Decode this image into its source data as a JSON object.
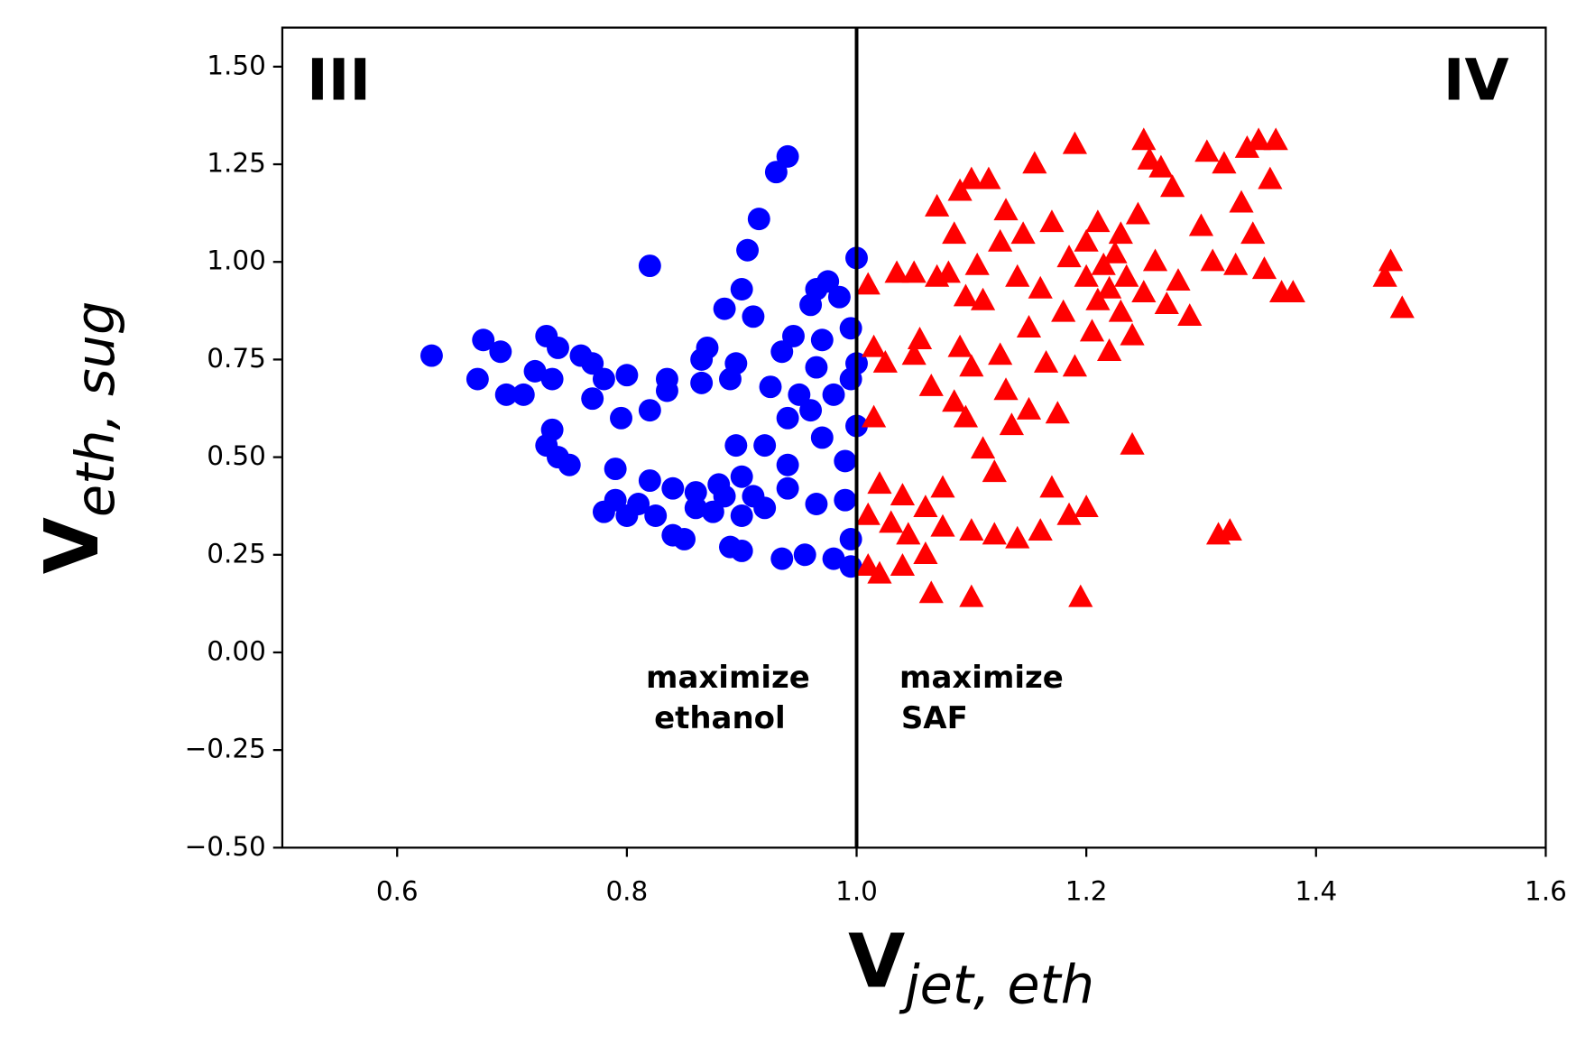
{
  "chart_data": {
    "type": "scatter",
    "xlabel": "V",
    "xlabel_sub": "jet, eth",
    "ylabel": "V",
    "ylabel_sub": "eth, sug",
    "xlim": [
      0.5,
      1.6
    ],
    "ylim": [
      -0.5,
      1.6
    ],
    "xticks": [
      0.6,
      0.8,
      {
        "value": 1,
        "label": "1.0"
      },
      1.2,
      1.4,
      1.6
    ],
    "yticks": [
      {
        "value": -0.5,
        "label": "−0.50"
      },
      {
        "value": -0.25,
        "label": "−0.25"
      },
      {
        "value": 0,
        "label": "0.00"
      },
      {
        "value": 0.25,
        "label": "0.25"
      },
      {
        "value": 0.5,
        "label": "0.50"
      },
      {
        "value": 0.75,
        "label": "0.75"
      },
      {
        "value": 1,
        "label": "1.00"
      },
      {
        "value": 1.25,
        "label": "1.25"
      },
      {
        "value": 1.5,
        "label": "1.50"
      }
    ],
    "grid": false,
    "vline": 1.0,
    "quadrant_left": "III",
    "quadrant_right": "IV",
    "annotation_left": [
      "maximize",
      "ethanol"
    ],
    "annotation_right": [
      "maximize",
      "SAF"
    ],
    "series": [
      {
        "color": "#0000ff",
        "marker": "circle",
        "x": [
          0.63,
          0.67,
          0.675,
          0.69,
          0.695,
          0.71,
          0.72,
          0.73,
          0.735,
          0.74,
          0.73,
          0.735,
          0.74,
          0.75,
          0.76,
          0.77,
          0.77,
          0.78,
          0.78,
          0.79,
          0.79,
          0.795,
          0.8,
          0.8,
          0.81,
          0.82,
          0.82,
          0.82,
          0.825,
          0.835,
          0.835,
          0.84,
          0.84,
          0.85,
          0.86,
          0.86,
          0.865,
          0.865,
          0.87,
          0.875,
          0.88,
          0.885,
          0.885,
          0.89,
          0.89,
          0.895,
          0.895,
          0.9,
          0.9,
          0.9,
          0.9,
          0.905,
          0.91,
          0.91,
          0.915,
          0.92,
          0.92,
          0.925,
          0.93,
          0.935,
          0.935,
          0.94,
          0.94,
          0.94,
          0.94,
          0.945,
          0.95,
          0.955,
          0.96,
          0.96,
          0.965,
          0.965,
          0.965,
          0.97,
          0.97,
          0.975,
          0.98,
          0.98,
          0.985,
          0.99,
          0.99,
          0.995,
          0.995,
          0.995,
          1.0,
          1.0,
          1.0,
          0.995
        ],
        "values": [
          0.76,
          0.7,
          0.8,
          0.77,
          0.66,
          0.66,
          0.72,
          0.81,
          0.7,
          0.78,
          0.53,
          0.57,
          0.5,
          0.48,
          0.76,
          0.74,
          0.65,
          0.7,
          0.36,
          0.39,
          0.47,
          0.6,
          0.71,
          0.35,
          0.38,
          0.62,
          0.99,
          0.44,
          0.35,
          0.67,
          0.7,
          0.42,
          0.3,
          0.29,
          0.37,
          0.41,
          0.75,
          0.69,
          0.78,
          0.36,
          0.43,
          0.88,
          0.4,
          0.7,
          0.27,
          0.53,
          0.74,
          0.93,
          0.45,
          0.35,
          0.26,
          1.03,
          0.86,
          0.4,
          1.11,
          0.53,
          0.37,
          0.68,
          1.23,
          0.24,
          0.77,
          1.27,
          0.6,
          0.48,
          0.42,
          0.81,
          0.66,
          0.25,
          0.62,
          0.89,
          0.93,
          0.73,
          0.38,
          0.8,
          0.55,
          0.95,
          0.66,
          0.24,
          0.91,
          0.49,
          0.39,
          0.29,
          0.22,
          0.83,
          1.01,
          0.58,
          0.74,
          0.7
        ]
      },
      {
        "color": "#ff0000",
        "marker": "triangle",
        "x": [
          1.01,
          1.01,
          1.01,
          1.015,
          1.015,
          1.02,
          1.02,
          1.025,
          1.03,
          1.035,
          1.04,
          1.04,
          1.045,
          1.05,
          1.05,
          1.055,
          1.06,
          1.06,
          1.065,
          1.065,
          1.07,
          1.07,
          1.075,
          1.075,
          1.08,
          1.085,
          1.085,
          1.09,
          1.09,
          1.095,
          1.095,
          1.1,
          1.1,
          1.1,
          1.1,
          1.105,
          1.11,
          1.11,
          1.115,
          1.12,
          1.12,
          1.125,
          1.125,
          1.13,
          1.13,
          1.135,
          1.14,
          1.14,
          1.145,
          1.15,
          1.15,
          1.155,
          1.16,
          1.16,
          1.165,
          1.17,
          1.17,
          1.175,
          1.18,
          1.185,
          1.185,
          1.19,
          1.19,
          1.195,
          1.2,
          1.2,
          1.2,
          1.205,
          1.21,
          1.21,
          1.215,
          1.22,
          1.22,
          1.225,
          1.23,
          1.23,
          1.235,
          1.24,
          1.24,
          1.245,
          1.25,
          1.25,
          1.255,
          1.26,
          1.265,
          1.27,
          1.275,
          1.28,
          1.29,
          1.3,
          1.305,
          1.31,
          1.315,
          1.32,
          1.325,
          1.33,
          1.335,
          1.34,
          1.345,
          1.35,
          1.355,
          1.36,
          1.365,
          1.37,
          1.38,
          1.46,
          1.465,
          1.475
        ],
        "values": [
          0.94,
          0.35,
          0.22,
          0.6,
          0.78,
          0.43,
          0.2,
          0.74,
          0.33,
          0.97,
          0.4,
          0.22,
          0.3,
          0.97,
          0.76,
          0.8,
          0.37,
          0.25,
          0.15,
          0.68,
          1.14,
          0.96,
          0.42,
          0.32,
          0.97,
          0.64,
          1.07,
          0.78,
          1.18,
          0.6,
          0.91,
          1.21,
          0.31,
          0.73,
          0.14,
          0.99,
          0.9,
          0.52,
          1.21,
          0.46,
          0.3,
          0.76,
          1.05,
          1.13,
          0.67,
          0.58,
          0.96,
          0.29,
          1.07,
          0.62,
          0.83,
          1.25,
          0.93,
          0.31,
          0.74,
          0.42,
          1.1,
          0.61,
          0.87,
          1.01,
          0.35,
          1.3,
          0.73,
          0.14,
          0.96,
          0.37,
          1.05,
          0.82,
          0.9,
          1.1,
          0.99,
          0.77,
          0.93,
          1.02,
          0.87,
          1.07,
          0.96,
          0.53,
          0.81,
          1.12,
          0.92,
          1.31,
          1.26,
          1.0,
          1.24,
          0.89,
          1.19,
          0.95,
          0.86,
          1.09,
          1.28,
          1.0,
          0.3,
          1.25,
          0.31,
          0.99,
          1.15,
          1.29,
          1.07,
          1.31,
          0.98,
          1.21,
          1.31,
          0.92,
          0.92,
          0.96,
          1.0,
          0.88
        ]
      }
    ]
  }
}
